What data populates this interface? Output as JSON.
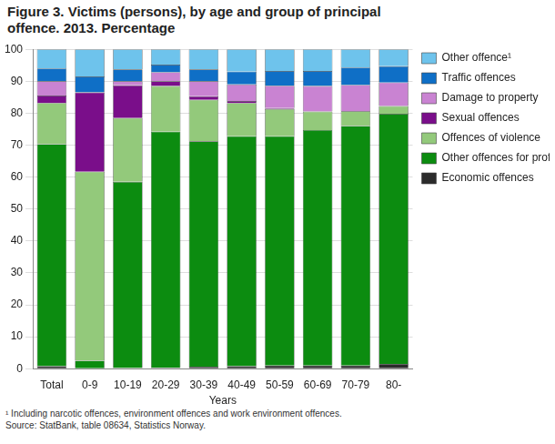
{
  "chart_data": {
    "type": "bar",
    "title": "Figure 3. Victims (persons), by age and group of principal offence. 2013. Percentage",
    "x_label": "Years",
    "footnote": "¹ Including narcotic offences, environment offences and work environment offences.",
    "source": "Source: StatBank, table 08634, Statistics Norway.",
    "categories": [
      "Total",
      "0-9",
      "10-19",
      "20-29",
      "30-39",
      "40-49",
      "50-59",
      "60-69",
      "70-79",
      "80-"
    ],
    "stacked": true,
    "grid": true,
    "legend": "right",
    "ylim": [
      0,
      100
    ],
    "yticks": [
      0,
      10,
      20,
      30,
      40,
      50,
      60,
      70,
      80,
      90,
      100
    ],
    "series": [
      {
        "name": "Economic offences",
        "color": "#2b2b2b",
        "values": [
          0.8,
          0,
          0.2,
          0.3,
          0.6,
          0.8,
          1,
          1,
          1,
          1.5
        ]
      },
      {
        "name": "Other offences for profit",
        "color": "#0c8c10",
        "values": [
          69.5,
          2.5,
          58.3,
          73.9,
          70.6,
          72,
          71.8,
          73.7,
          75,
          78.3
        ]
      },
      {
        "name": "Offences of violence",
        "color": "#93c97b",
        "values": [
          12.9,
          59.2,
          20,
          14.3,
          13,
          10.4,
          8.5,
          5.8,
          4.6,
          2.4
        ]
      },
      {
        "name": "Sexual offences",
        "color": "#7a0e8a",
        "values": [
          2.3,
          24.8,
          10.2,
          1.5,
          1.1,
          0.6,
          0.3,
          0.1,
          0.1,
          0.1
        ]
      },
      {
        "name": "Damage to property",
        "color": "#c983d2",
        "values": [
          4.5,
          0,
          1.3,
          2.8,
          4.7,
          5.2,
          7,
          7.9,
          8.1,
          7.3
        ]
      },
      {
        "name": "Traffic offences",
        "color": "#0f6fc6",
        "values": [
          4,
          5,
          3.7,
          2.4,
          3.7,
          4,
          4.6,
          4.7,
          5.5,
          5.1
        ]
      },
      {
        "name": "Other offence¹",
        "color": "#6ec3ec",
        "values": [
          6,
          8.5,
          6.3,
          4.8,
          6.3,
          7,
          6.8,
          6.8,
          5.7,
          5.3
        ]
      }
    ]
  }
}
